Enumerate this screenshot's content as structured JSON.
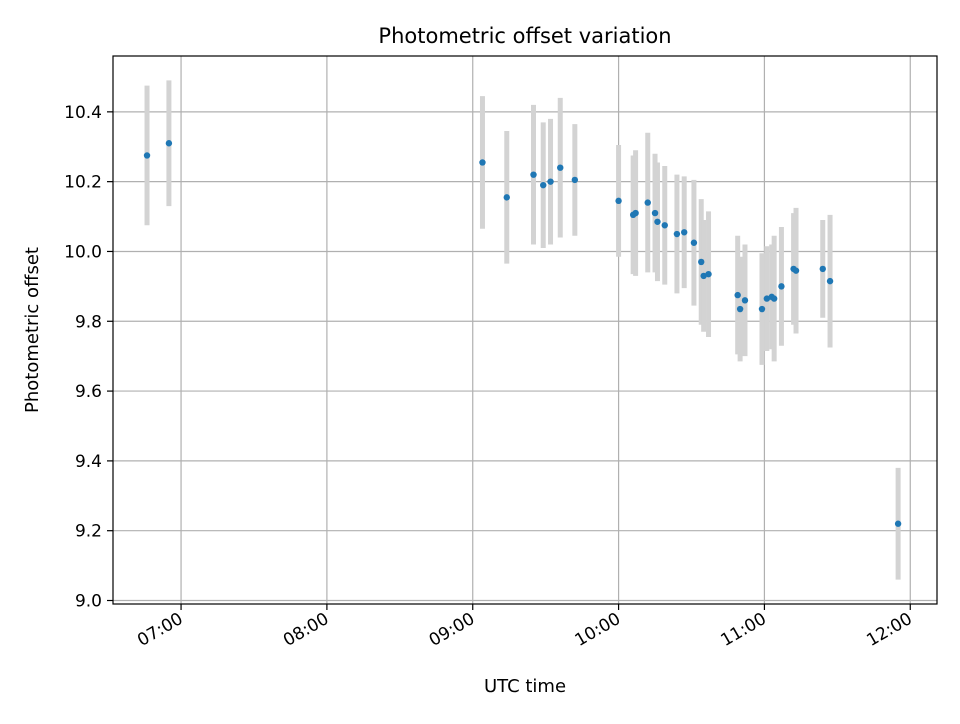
{
  "chart_data": {
    "type": "scatter",
    "title": "Photometric offset variation",
    "xlabel": "UTC time",
    "ylabel": "Photometric offset",
    "x_ticks": [
      "07:00",
      "08:00",
      "09:00",
      "10:00",
      "11:00",
      "12:00"
    ],
    "y_ticks": [
      "9.0",
      "9.2",
      "9.4",
      "9.6",
      "9.8",
      "10.0",
      "10.2",
      "10.4"
    ],
    "xlim": [
      "06:32",
      "12:11"
    ],
    "ylim": [
      8.99,
      10.56
    ],
    "grid": true,
    "colors": {
      "marker": "#1f77b4",
      "errorbar": "#d3d3d3",
      "grid": "#b0b0b0"
    },
    "points": [
      {
        "x": "06:46",
        "y": 10.275,
        "yerr": 0.2
      },
      {
        "x": "06:55",
        "y": 10.31,
        "yerr": 0.18
      },
      {
        "x": "09:04",
        "y": 10.255,
        "yerr": 0.19
      },
      {
        "x": "09:14",
        "y": 10.155,
        "yerr": 0.19
      },
      {
        "x": "09:25",
        "y": 10.22,
        "yerr": 0.2
      },
      {
        "x": "09:29",
        "y": 10.19,
        "yerr": 0.18
      },
      {
        "x": "09:32",
        "y": 10.2,
        "yerr": 0.18
      },
      {
        "x": "09:36",
        "y": 10.24,
        "yerr": 0.2
      },
      {
        "x": "09:42",
        "y": 10.205,
        "yerr": 0.16
      },
      {
        "x": "10:00",
        "y": 10.145,
        "yerr": 0.16
      },
      {
        "x": "10:06",
        "y": 10.105,
        "yerr": 0.17
      },
      {
        "x": "10:07",
        "y": 10.11,
        "yerr": 0.18
      },
      {
        "x": "10:12",
        "y": 10.14,
        "yerr": 0.2
      },
      {
        "x": "10:15",
        "y": 10.11,
        "yerr": 0.17
      },
      {
        "x": "10:16",
        "y": 10.085,
        "yerr": 0.17
      },
      {
        "x": "10:19",
        "y": 10.075,
        "yerr": 0.17
      },
      {
        "x": "10:24",
        "y": 10.05,
        "yerr": 0.17
      },
      {
        "x": "10:27",
        "y": 10.055,
        "yerr": 0.16
      },
      {
        "x": "10:31",
        "y": 10.025,
        "yerr": 0.18
      },
      {
        "x": "10:34",
        "y": 9.97,
        "yerr": 0.18
      },
      {
        "x": "10:35",
        "y": 9.93,
        "yerr": 0.16
      },
      {
        "x": "10:37",
        "y": 9.935,
        "yerr": 0.18
      },
      {
        "x": "10:49",
        "y": 9.875,
        "yerr": 0.17
      },
      {
        "x": "10:50",
        "y": 9.835,
        "yerr": 0.15
      },
      {
        "x": "10:52",
        "y": 9.86,
        "yerr": 0.16
      },
      {
        "x": "10:59",
        "y": 9.835,
        "yerr": 0.16
      },
      {
        "x": "11:01",
        "y": 9.865,
        "yerr": 0.15
      },
      {
        "x": "11:03",
        "y": 9.87,
        "yerr": 0.15
      },
      {
        "x": "11:04",
        "y": 9.865,
        "yerr": 0.18
      },
      {
        "x": "11:07",
        "y": 9.9,
        "yerr": 0.17
      },
      {
        "x": "11:12",
        "y": 9.95,
        "yerr": 0.16
      },
      {
        "x": "11:13",
        "y": 9.945,
        "yerr": 0.18
      },
      {
        "x": "11:24",
        "y": 9.95,
        "yerr": 0.14
      },
      {
        "x": "11:27",
        "y": 9.915,
        "yerr": 0.19
      },
      {
        "x": "11:55",
        "y": 9.22,
        "yerr": 0.16
      }
    ]
  }
}
